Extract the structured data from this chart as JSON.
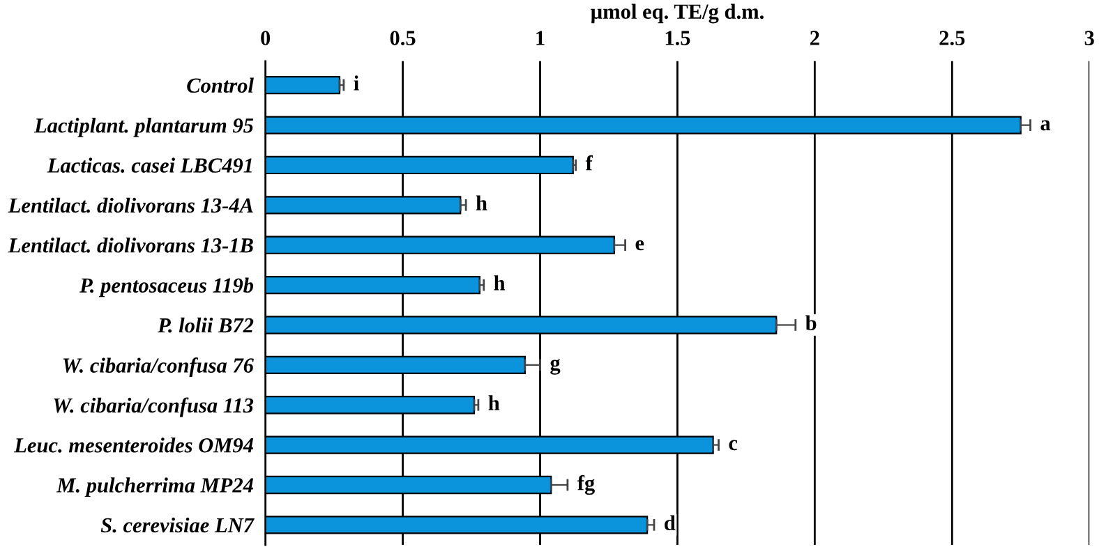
{
  "chart_data": {
    "type": "bar",
    "orientation": "horizontal",
    "xlabel": "µmol eq. TE/g d.m.",
    "categories": [
      "Control",
      "Lactiplant. plantarum 95",
      "Lacticas. casei LBC491",
      "Lentilact. diolivorans 13-4A",
      "Lentilact. diolivorans 13-1B",
      "P. pentosaceus 119b",
      "P. lolii B72",
      "W. cibaria/confusa 76",
      "W. cibaria/confusa 113",
      "Leuc. mesenteroides OM94",
      "M. pulcherrima MP24",
      "S. cerevisiae LN7"
    ],
    "values": [
      0.27,
      2.75,
      1.12,
      0.71,
      1.27,
      0.78,
      1.86,
      0.945,
      0.76,
      1.63,
      1.04,
      1.39
    ],
    "errors": [
      [
        0.27,
        0.285
      ],
      [
        2.75,
        2.785
      ],
      [
        1.12,
        1.13
      ],
      [
        0.71,
        0.73
      ],
      [
        1.27,
        1.31
      ],
      [
        0.78,
        0.795
      ],
      [
        1.86,
        1.93
      ],
      [
        0.945,
        1.0
      ],
      [
        0.76,
        0.775
      ],
      [
        1.63,
        1.65
      ],
      [
        1.04,
        1.1
      ],
      [
        1.39,
        1.415
      ]
    ],
    "color": "#0b93dc",
    "xlim": [
      0,
      3
    ],
    "xticks": [
      0,
      0.5,
      1,
      1.5,
      2,
      2.5,
      3
    ],
    "grid": "x",
    "annotations": [
      {
        "text": "i",
        "x": 0.285,
        "y": "Control"
      },
      {
        "text": "a",
        "x": 2.785,
        "y": "Lactiplant. plantarum 95"
      },
      {
        "text": "f",
        "x": 1.13,
        "y": "Lacticas. casei LBC491"
      },
      {
        "text": "h",
        "x": 0.73,
        "y": "Lentilact. diolivorans 13-4A"
      },
      {
        "text": "e",
        "x": 1.31,
        "y": "Lentilact. diolivorans 13-1B"
      },
      {
        "text": "h",
        "x": 0.795,
        "y": "P. pentosaceus 119b"
      },
      {
        "text": "b",
        "x": 1.93,
        "y": "P. lolii B72"
      },
      {
        "text": "g",
        "x": 1.0,
        "y": "W. cibaria/confusa 76"
      },
      {
        "text": "h",
        "x": 0.775,
        "y": "W. cibaria/confusa 113"
      },
      {
        "text": "c",
        "x": 1.65,
        "y": "Leuc. mesenteroides OM94"
      },
      {
        "text": "fg",
        "x": 1.1,
        "y": "M. pulcherrima MP24"
      },
      {
        "text": "d",
        "x": 1.415,
        "y": "S. cerevisiae LN7"
      }
    ]
  }
}
